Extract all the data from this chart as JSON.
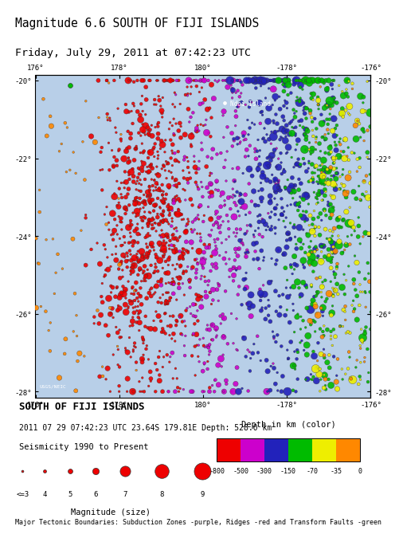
{
  "title_line1": "Magnitude 6.6 SOUTH OF FIJI ISLANDS",
  "title_line2": "Friday, July 29, 2011 at 07:42:23 UTC",
  "map_title": "SOUTH OF FIJI ISLANDS",
  "event_info": "2011 07 29 07:42:23 UTC 23.64S 179.81E Depth: 528.0 km",
  "seismicity_label": "Seismicity 1990 to Present",
  "magnitude_label": "Magnitude (size)",
  "depth_label": "Depth in km (color)",
  "footer": "Major Tectonic Boundaries: Subduction Zones -purple, Ridges -red and Transform Faults -green",
  "xlim": [
    176,
    184
  ],
  "ylim": [
    -28.15,
    -19.85
  ],
  "xtick_pos": [
    176,
    178,
    180,
    182,
    184
  ],
  "xtick_labels": [
    "176°",
    "178°",
    "180°",
    "-178°",
    "-176°"
  ],
  "ytick_pos": [
    -20,
    -22,
    -24,
    -26,
    -28
  ],
  "ytick_labels": [
    "-20°",
    "-22°",
    "-24°",
    "-26°",
    "-28°"
  ],
  "map_bg": "#b8cfe8",
  "depth_colors": [
    "#ee0000",
    "#cc00cc",
    "#2222bb",
    "#00bb00",
    "#eeee00",
    "#ff8800"
  ],
  "depth_labels": [
    "-800",
    "-500",
    "-300",
    "-150",
    "-70",
    "-35",
    "0"
  ],
  "mag_display_sizes": [
    4,
    8,
    18,
    35,
    90,
    160,
    230
  ],
  "mag_labels": [
    "<=3",
    "4",
    "5",
    "6",
    "7",
    "8",
    "9"
  ],
  "ndoi_lon": 180.52,
  "ndoi_lat": -20.58
}
